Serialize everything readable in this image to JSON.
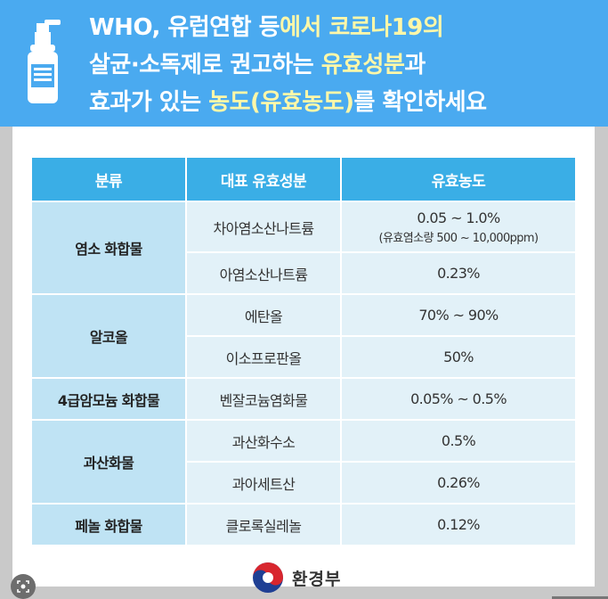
{
  "header": {
    "line1_a": "WHO, 유럽연합 등",
    "line1_b": "에서 코로나19의",
    "line2_a": "살균·소독제로 권고하는 ",
    "line2_b": "유효성분",
    "line2_c": "과",
    "line3_a": "효과가 있는 ",
    "line3_b": "농도(유효농도)",
    "line3_c": "를 확인하세요",
    "icon": "sanitizer-bottle-icon"
  },
  "table": {
    "headers": [
      "분류",
      "대표 유효성분",
      "유효농도"
    ],
    "groups": [
      {
        "category": "염소 화합물",
        "rows": [
          {
            "ingredient": "차아염소산나트륨",
            "concentration": "0.05 ~ 1.0%",
            "note": "(유효염소량 500 ~ 10,000ppm)"
          },
          {
            "ingredient": "아염소산나트륨",
            "concentration": "0.23%"
          }
        ]
      },
      {
        "category": "알코올",
        "rows": [
          {
            "ingredient": "에탄올",
            "concentration": "70% ~ 90%"
          },
          {
            "ingredient": "이소프로판올",
            "concentration": "50%"
          }
        ]
      },
      {
        "category": "4급암모늄 화합물",
        "rows": [
          {
            "ingredient": "벤잘코늄염화물",
            "concentration": "0.05% ~ 0.5%"
          }
        ]
      },
      {
        "category": "과산화물",
        "rows": [
          {
            "ingredient": "과산화수소",
            "concentration": "0.5%"
          },
          {
            "ingredient": "과아세트산",
            "concentration": "0.26%"
          }
        ]
      },
      {
        "category": "페놀 화합물",
        "rows": [
          {
            "ingredient": "클로록실레놀",
            "concentration": "0.12%"
          }
        ]
      }
    ]
  },
  "footer": {
    "ministry": "환경부",
    "logo": "taegeuk-logo-icon"
  },
  "overlay": {
    "icon": "lens-icon"
  },
  "colors": {
    "header_bg": "#4aaaf0",
    "highlight": "#fff7a8",
    "table_header": "#3aaee6",
    "category_bg": "#bfe3f4",
    "cell_bg": "#e2f1f8"
  }
}
